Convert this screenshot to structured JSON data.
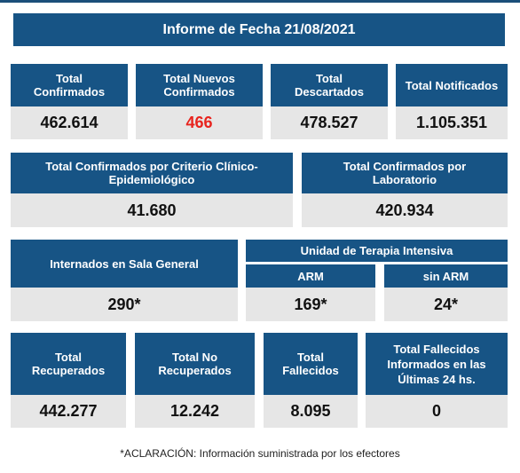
{
  "title": "Informe de Fecha 21/08/2021",
  "row1": [
    {
      "label": "Total\nConfirmados",
      "value": "462.614"
    },
    {
      "label": "Total Nuevos\nConfirmados",
      "value": "466"
    },
    {
      "label": "Total\nDescartados",
      "value": "478.527"
    },
    {
      "label": "Total Notificados",
      "value": "1.105.351"
    }
  ],
  "row2": [
    {
      "label": "Total Confirmados por Criterio Clínico-\nEpidemiológico",
      "value": "41.680"
    },
    {
      "label": "Total Confirmados por\nLaboratorio",
      "value": "420.934"
    }
  ],
  "row3": {
    "internados": {
      "label": "Internados en Sala General",
      "value": "290*"
    },
    "uti_title": "Unidad de Terapia Intensiva",
    "arm": {
      "label": "ARM",
      "value": "169*"
    },
    "sin_arm": {
      "label": "sin ARM",
      "value": "24*"
    }
  },
  "row4": [
    {
      "label": "Total\nRecuperados",
      "value": "442.277"
    },
    {
      "label": "Total No\nRecuperados",
      "value": "12.242"
    },
    {
      "label": "Total\nFallecidos",
      "value": "8.095"
    },
    {
      "label": "Total Fallecidos\nInformados en las\nÚltimas 24 hs.",
      "value": "0"
    }
  ],
  "note": "*ACLARACIÓN: Información suministrada por los efectores",
  "colors": {
    "header": "#175485",
    "value_bg": "#e6e6e6",
    "highlight": "#e8241e"
  }
}
